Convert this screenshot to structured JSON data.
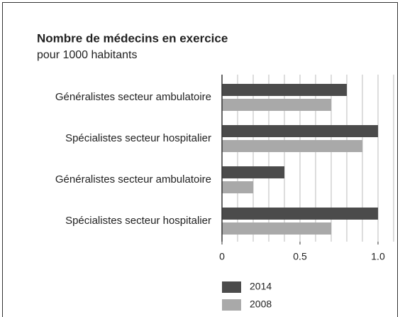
{
  "chart_data": {
    "type": "barh",
    "title": "Nombre de médecins en exercice",
    "subtitle": "pour 1000 habitants",
    "categories": [
      "Généralistes secteur ambulatoire",
      "Spécialistes secteur hospitalier",
      "Généralistes secteur ambulatoire",
      "Spécialistes secteur hospitalier"
    ],
    "series": [
      {
        "name": "2014",
        "color": "#4b4b4b",
        "values": [
          0.8,
          1.0,
          0.4,
          1.0
        ]
      },
      {
        "name": "2008",
        "color": "#a9a9a9",
        "values": [
          0.7,
          0.9,
          0.2,
          0.7
        ]
      }
    ],
    "xlim": [
      0,
      1.1
    ],
    "xticks": [
      0,
      0.5,
      {
        "value": 1,
        "label": "1.0"
      }
    ],
    "xminor_ticks": [
      0.1,
      0.2,
      0.3,
      0.4,
      0.5,
      0.6,
      0.7,
      0.8,
      0.9,
      1.0,
      1.1
    ],
    "grid": true
  }
}
